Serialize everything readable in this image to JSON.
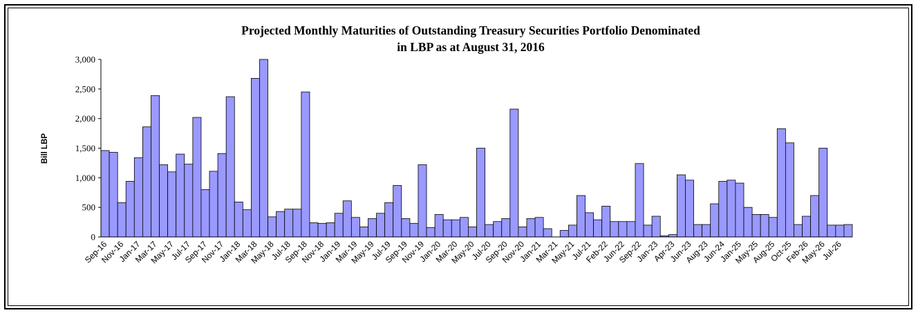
{
  "chart_data": {
    "type": "bar",
    "title_lines": [
      "Projected Monthly Maturities of Outstanding Treasury Securities Portfolio Denominated",
      "in LBP as at August 31, 2016"
    ],
    "ylabel": "Bill LBP",
    "xlabel": "",
    "ylim": [
      0,
      3000
    ],
    "yticks": [
      0,
      500,
      1000,
      1500,
      2000,
      2500,
      3000
    ],
    "ytick_labels": [
      "0",
      "500",
      "1,000",
      "1,500",
      "2,000",
      "2,500",
      "3,000"
    ],
    "bar_color": "#9999ff",
    "xtick_labels": [
      "Sep-16",
      "Nov-16",
      "Jan-17",
      "Mar-17",
      "May-17",
      "Jul-17",
      "Sep-17",
      "Nov-17",
      "Jan-18",
      "Mar-18",
      "May-18",
      "Jul-18",
      "Sep-18",
      "Nov-18",
      "Jan-19",
      "Mar-19",
      "May-19",
      "Jul-19",
      "Sep-19",
      "Nov-19",
      "Jan-20",
      "Mar-20",
      "May-20",
      "Jul-20",
      "Sep-20",
      "Nov-20",
      "Jan-21",
      "Mar-21",
      "May-21",
      "Jul-21",
      "Feb-22",
      "Jun-22",
      "Sep-22",
      "Jan-23",
      "Apr-23",
      "Jun-23",
      "Aug-23",
      "Jun-24",
      "Jan-25",
      "May-25",
      "Aug-25",
      "Oct-25",
      "Feb-26",
      "May-26",
      "Jul-26"
    ],
    "values": [
      1460,
      1430,
      580,
      940,
      1340,
      1860,
      2390,
      1220,
      1100,
      1400,
      1230,
      2020,
      800,
      1110,
      1410,
      2370,
      590,
      460,
      2680,
      3000,
      340,
      430,
      470,
      470,
      2450,
      240,
      230,
      240,
      400,
      610,
      330,
      170,
      310,
      400,
      580,
      870,
      310,
      230,
      1220,
      160,
      380,
      290,
      290,
      330,
      170,
      1500,
      210,
      260,
      310,
      2160,
      170,
      310,
      330,
      140,
      0,
      110,
      200,
      700,
      410,
      290,
      520,
      260,
      260,
      260,
      1240,
      200,
      350,
      20,
      40,
      1050,
      960,
      210,
      210,
      560,
      940,
      960,
      910,
      500,
      380,
      380,
      330,
      1830,
      1590,
      210,
      350,
      700,
      1500,
      200,
      200,
      210
    ]
  }
}
